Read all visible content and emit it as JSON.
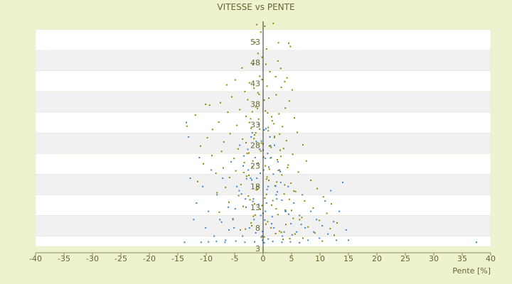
{
  "chart_data": {
    "type": "scatter",
    "title": "VITESSE vs PENTE",
    "xlabel": "Pente [%]",
    "ylabel": "",
    "xlim": [
      -40,
      40
    ],
    "ylim": [
      3,
      58
    ],
    "x_ticks": [
      -40,
      -35,
      -30,
      -25,
      -20,
      -15,
      -10,
      -5,
      0,
      5,
      10,
      15,
      20,
      25,
      30,
      35,
      40
    ],
    "y_ticks": [
      3,
      8,
      13,
      18,
      23,
      28,
      33,
      38,
      43,
      48,
      53
    ],
    "grid": "horizontal bands",
    "legend": "none",
    "series": [
      {
        "color": "#8a8a00",
        "points": [
          [
            -1.1,
            57.2
          ],
          [
            0.3,
            56.8
          ],
          [
            1.8,
            57.5
          ],
          [
            -0.4,
            55.4
          ],
          [
            -1.4,
            52.9
          ],
          [
            2.7,
            52.8
          ],
          [
            4.5,
            52.7
          ],
          [
            4.8,
            51.9
          ],
          [
            0.6,
            51.3
          ],
          [
            -0.9,
            50.2
          ],
          [
            -0.2,
            49.3
          ],
          [
            0.5,
            47.6
          ],
          [
            2.6,
            48.4
          ],
          [
            -1.8,
            47.5
          ],
          [
            3.1,
            46.6
          ],
          [
            -3.7,
            46.7
          ],
          [
            1.2,
            45.8
          ],
          [
            -0.6,
            44.7
          ],
          [
            2.2,
            44.6
          ],
          [
            4.2,
            44.3
          ],
          [
            -4.9,
            43.8
          ],
          [
            3.8,
            43.4
          ],
          [
            -0.2,
            43.9
          ],
          [
            -2.4,
            43.1
          ],
          [
            -6.4,
            42.6
          ],
          [
            0.7,
            42.3
          ],
          [
            3.2,
            42.0
          ],
          [
            -1.6,
            41.8
          ],
          [
            5.1,
            41.4
          ],
          [
            -3.2,
            41.0
          ],
          [
            -0.9,
            40.7
          ],
          [
            2.3,
            40.2
          ],
          [
            -5.5,
            39.7
          ],
          [
            1.0,
            39.4
          ],
          [
            -2.7,
            39.0
          ],
          [
            4.6,
            38.7
          ],
          [
            -7.5,
            38.3
          ],
          [
            -10.1,
            37.9
          ],
          [
            -9.4,
            37.7
          ],
          [
            -1.3,
            37.3
          ],
          [
            3.9,
            37.0
          ],
          [
            -4.1,
            36.6
          ],
          [
            0.4,
            36.3
          ],
          [
            -6.2,
            36.0
          ],
          [
            2.8,
            35.6
          ],
          [
            -11.9,
            35.3
          ],
          [
            -3.0,
            35.0
          ],
          [
            5.5,
            34.6
          ],
          [
            -0.8,
            34.3
          ],
          [
            1.6,
            33.9
          ],
          [
            -7.8,
            33.6
          ],
          [
            -13.4,
            32.6
          ],
          [
            -4.6,
            32.8
          ],
          [
            3.4,
            32.5
          ],
          [
            -2.1,
            32.1
          ],
          [
            -8.9,
            31.8
          ],
          [
            0.9,
            31.5
          ],
          [
            6.0,
            31.1
          ],
          [
            -5.8,
            30.8
          ],
          [
            -1.5,
            30.5
          ],
          [
            2.0,
            30.1
          ],
          [
            -9.8,
            29.8
          ],
          [
            -3.6,
            29.5
          ],
          [
            4.1,
            29.1
          ],
          [
            -6.9,
            28.8
          ],
          [
            -0.3,
            28.5
          ],
          [
            7.0,
            28.1
          ],
          [
            -11.0,
            27.8
          ],
          [
            1.4,
            27.5
          ],
          [
            -4.4,
            27.1
          ],
          [
            3.0,
            26.8
          ],
          [
            -7.3,
            26.5
          ],
          [
            -2.5,
            26.1
          ],
          [
            5.2,
            25.8
          ],
          [
            -9.0,
            25.5
          ],
          [
            0.1,
            25.1
          ],
          [
            -5.1,
            24.8
          ],
          [
            2.5,
            24.5
          ],
          [
            7.6,
            24.2
          ],
          [
            -3.3,
            23.8
          ],
          [
            -10.5,
            23.5
          ],
          [
            4.4,
            23.2
          ],
          [
            -1.9,
            22.8
          ],
          [
            -7.0,
            22.5
          ],
          [
            1.1,
            22.2
          ],
          [
            -4.8,
            21.8
          ],
          [
            6.2,
            21.5
          ],
          [
            -8.3,
            21.2
          ],
          [
            3.3,
            20.8
          ],
          [
            -2.9,
            20.5
          ],
          [
            -5.9,
            20.2
          ],
          [
            0.6,
            19.8
          ],
          [
            8.4,
            19.5
          ],
          [
            -11.5,
            19.2
          ],
          [
            4.9,
            18.8
          ],
          [
            -3.9,
            18.5
          ],
          [
            2.1,
            18.2
          ],
          [
            -6.6,
            17.8
          ],
          [
            9.5,
            17.5
          ],
          [
            -1.2,
            17.2
          ],
          [
            5.7,
            16.8
          ],
          [
            -8.1,
            16.5
          ],
          [
            3.7,
            16.2
          ],
          [
            -4.3,
            15.8
          ],
          [
            10.6,
            15.5
          ],
          [
            0.3,
            15.2
          ],
          [
            -2.3,
            14.8
          ],
          [
            7.3,
            14.5
          ],
          [
            -6.0,
            14.2
          ],
          [
            12.0,
            13.8
          ],
          [
            1.5,
            13.5
          ],
          [
            -3.5,
            13.2
          ],
          [
            8.8,
            12.8
          ],
          [
            -0.5,
            12.5
          ],
          [
            5.0,
            12.2
          ],
          [
            -7.7,
            11.8
          ],
          [
            11.2,
            11.5
          ],
          [
            2.6,
            11.2
          ],
          [
            -1.7,
            10.8
          ],
          [
            6.8,
            10.5
          ],
          [
            -5.3,
            10.2
          ],
          [
            9.9,
            9.8
          ],
          [
            0.8,
            9.5
          ],
          [
            13.0,
            9.2
          ],
          [
            4.0,
            8.8
          ],
          [
            -2.0,
            8.5
          ],
          [
            7.9,
            8.2
          ],
          [
            11.8,
            7.8
          ],
          [
            -4.0,
            7.5
          ],
          [
            2.9,
            7.2
          ],
          [
            9.1,
            6.8
          ],
          [
            5.6,
            6.5
          ],
          [
            12.5,
            6.2
          ],
          [
            0.2,
            5.8
          ],
          [
            7.0,
            5.5
          ],
          [
            3.5,
            5.2
          ],
          [
            10.4,
            4.8
          ],
          [
            -1.0,
            36.9
          ],
          [
            0.8,
            35.8
          ],
          [
            -2.2,
            34.4
          ],
          [
            1.9,
            33.2
          ],
          [
            -0.6,
            31.9
          ],
          [
            2.9,
            30.7
          ],
          [
            -1.6,
            29.6
          ],
          [
            0.0,
            28.3
          ],
          [
            3.6,
            27.2
          ],
          [
            -2.8,
            26.0
          ],
          [
            1.3,
            24.9
          ],
          [
            -0.9,
            23.7
          ],
          [
            4.3,
            22.6
          ],
          [
            -3.4,
            21.4
          ],
          [
            0.7,
            20.3
          ],
          [
            2.4,
            19.1
          ],
          [
            -1.1,
            18.0
          ],
          [
            5.4,
            16.9
          ],
          [
            -2.6,
            15.7
          ],
          [
            1.7,
            14.6
          ],
          [
            -0.2,
            13.4
          ],
          [
            3.9,
            12.3
          ],
          [
            -1.4,
            11.1
          ],
          [
            6.4,
            10.0
          ],
          [
            0.5,
            8.9
          ],
          [
            -3.1,
            7.7
          ],
          [
            2.2,
            6.6
          ],
          [
            4.7,
            5.4
          ],
          [
            -0.7,
            40.3
          ],
          [
            0.2,
            38.9
          ],
          [
            -1.9,
            36.1
          ],
          [
            1.5,
            34.9
          ],
          [
            -2.4,
            33.5
          ],
          [
            0.9,
            32.3
          ],
          [
            -1.3,
            31.0
          ],
          [
            2.0,
            29.9
          ],
          [
            -3.0,
            28.6
          ],
          [
            1.1,
            27.8
          ],
          [
            -0.4,
            26.6
          ],
          [
            3.1,
            25.3
          ],
          [
            -1.8,
            24.2
          ],
          [
            0.4,
            23.0
          ],
          [
            2.7,
            21.9
          ],
          [
            -2.5,
            20.7
          ],
          [
            1.0,
            19.5
          ],
          [
            3.8,
            18.4
          ],
          [
            -1.0,
            17.3
          ],
          [
            0.6,
            16.1
          ],
          [
            4.6,
            14.9
          ],
          [
            -1.5,
            13.8
          ],
          [
            2.3,
            12.6
          ],
          [
            0.0,
            11.5
          ],
          [
            5.3,
            10.3
          ],
          [
            -2.1,
            9.2
          ],
          [
            1.4,
            8.0
          ],
          [
            3.2,
            6.9
          ],
          [
            -0.3,
            5.7
          ]
        ]
      },
      {
        "color": "#3a86c8",
        "points": [
          [
            -13.8,
            4.5
          ],
          [
            -13.1,
            30.0
          ],
          [
            -13.5,
            33.5
          ],
          [
            -12.8,
            20.0
          ],
          [
            -12.2,
            10.0
          ],
          [
            -11.7,
            14.0
          ],
          [
            -11.2,
            25.0
          ],
          [
            -10.6,
            18.0
          ],
          [
            -10.1,
            8.0
          ],
          [
            -9.6,
            12.0
          ],
          [
            -9.1,
            22.0
          ],
          [
            -8.6,
            6.0
          ],
          [
            -8.1,
            16.0
          ],
          [
            -7.6,
            10.0
          ],
          [
            -7.1,
            20.0
          ],
          [
            -6.6,
            5.0
          ],
          [
            -6.1,
            13.0
          ],
          [
            -5.6,
            24.0
          ],
          [
            -5.1,
            8.0
          ],
          [
            -4.6,
            18.0
          ],
          [
            -4.1,
            28.0
          ],
          [
            -3.6,
            6.0
          ],
          [
            -3.1,
            15.0
          ],
          [
            -2.6,
            22.0
          ],
          [
            -2.1,
            30.0
          ],
          [
            -1.6,
            10.0
          ],
          [
            -1.1,
            20.0
          ],
          [
            -0.6,
            27.0
          ],
          [
            -0.1,
            5.0
          ],
          [
            0.4,
            12.0
          ],
          [
            0.9,
            18.0
          ],
          [
            1.4,
            25.0
          ],
          [
            1.9,
            8.0
          ],
          [
            2.4,
            15.0
          ],
          [
            2.9,
            22.0
          ],
          [
            3.4,
            6.0
          ],
          [
            3.9,
            12.0
          ],
          [
            4.4,
            18.0
          ],
          [
            4.9,
            9.0
          ],
          [
            5.4,
            14.0
          ],
          [
            5.9,
            7.0
          ],
          [
            6.4,
            11.0
          ],
          [
            6.9,
            16.0
          ],
          [
            7.4,
            8.0
          ],
          [
            7.9,
            5.0
          ],
          [
            8.4,
            12.0
          ],
          [
            8.9,
            7.0
          ],
          [
            9.4,
            10.0
          ],
          [
            9.9,
            5.5
          ],
          [
            10.4,
            8.5
          ],
          [
            10.9,
            14.5
          ],
          [
            11.4,
            6.5
          ],
          [
            11.9,
            17.0
          ],
          [
            12.4,
            9.5
          ],
          [
            12.9,
            5.0
          ],
          [
            13.4,
            12.0
          ],
          [
            14.0,
            19.0
          ],
          [
            14.6,
            7.5
          ],
          [
            15.0,
            5.0
          ],
          [
            37.5,
            4.5
          ],
          [
            -4.8,
            4.8
          ],
          [
            -3.2,
            4.5
          ],
          [
            -1.5,
            4.6
          ],
          [
            0.2,
            4.4
          ],
          [
            1.7,
            4.7
          ],
          [
            3.3,
            4.5
          ],
          [
            4.8,
            4.6
          ],
          [
            6.4,
            4.4
          ],
          [
            -6.7,
            4.5
          ],
          [
            -8.2,
            4.7
          ],
          [
            -9.6,
            4.6
          ],
          [
            -10.9,
            4.5
          ],
          [
            -0.7,
            33.0
          ],
          [
            0.5,
            32.0
          ],
          [
            -1.9,
            31.0
          ],
          [
            1.2,
            30.0
          ],
          [
            -0.3,
            29.0
          ],
          [
            2.0,
            28.0
          ],
          [
            -2.7,
            27.0
          ],
          [
            0.8,
            26.0
          ],
          [
            -1.4,
            25.0
          ],
          [
            2.6,
            24.0
          ],
          [
            -3.5,
            23.0
          ],
          [
            0.1,
            22.0
          ],
          [
            1.8,
            21.0
          ],
          [
            -2.2,
            20.0
          ],
          [
            3.1,
            19.0
          ],
          [
            -0.9,
            18.0
          ],
          [
            -4.2,
            17.0
          ],
          [
            2.3,
            16.0
          ],
          [
            -1.7,
            15.0
          ],
          [
            0.6,
            14.0
          ],
          [
            -3.0,
            13.0
          ],
          [
            4.0,
            12.0
          ],
          [
            -0.4,
            11.0
          ],
          [
            -5.3,
            10.0
          ],
          [
            1.5,
            9.0
          ],
          [
            -2.4,
            8.0
          ],
          [
            3.7,
            7.0
          ],
          [
            -0.2,
            6.0
          ],
          [
            -6.0,
            7.5
          ],
          [
            5.1,
            6.3
          ],
          [
            -7.3,
            9.4
          ],
          [
            6.7,
            8.8
          ],
          [
            -4.9,
            12.6
          ],
          [
            4.5,
            11.3
          ],
          [
            -3.8,
            16.2
          ],
          [
            3.3,
            14.7
          ],
          [
            -2.0,
            19.6
          ],
          [
            2.2,
            18.1
          ],
          [
            -1.1,
            23.5
          ],
          [
            1.0,
            22.7
          ],
          [
            0.0,
            26.8
          ],
          [
            0.4,
            24.8
          ],
          [
            -0.5,
            21.2
          ],
          [
            0.7,
            17.3
          ],
          [
            -0.8,
            13.7
          ],
          [
            0.3,
            9.9
          ],
          [
            -0.1,
            7.1
          ],
          [
            0.9,
            5.3
          ],
          [
            -1.3,
            6.8
          ],
          [
            1.6,
            10.7
          ],
          [
            -1.8,
            14.4
          ],
          [
            2.5,
            16.7
          ],
          [
            -2.9,
            19.9
          ],
          [
            3.0,
            21.6
          ],
          [
            -3.4,
            25.4
          ],
          [
            1.3,
            27.9
          ],
          [
            -1.2,
            28.9
          ],
          [
            0.2,
            31.7
          ]
        ]
      }
    ]
  }
}
